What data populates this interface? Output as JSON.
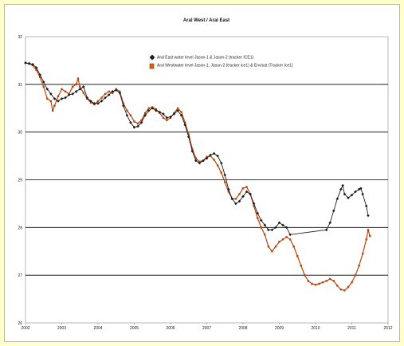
{
  "colors": {
    "page_background": "#ffffc9",
    "plot_background": "#ffffff",
    "east_series": "#1e1e1e",
    "west_series": "#b8440c",
    "gridline": "#000000"
  },
  "chart_data": {
    "type": "line",
    "title": "Aral West / Aral East",
    "xlabel": "",
    "ylabel": "",
    "xlim": [
      2002,
      2012
    ],
    "ylim": [
      26,
      32
    ],
    "x_ticks": [
      "2002",
      "2003",
      "2004",
      "2005",
      "2006",
      "2007",
      "2008",
      "2009",
      "2010",
      "2011",
      "2012"
    ],
    "y_ticks": [
      "26",
      "27",
      "28",
      "29",
      "30",
      "31",
      "32"
    ],
    "grid": "horizontal",
    "legend_position": "top-center",
    "series": [
      {
        "name": "Aral East water level Jason-1 & Jason-2 (tracker ICE1)",
        "color": "#1e1e1e",
        "marker": "diamond",
        "points": [
          [
            2002.0,
            31.45
          ],
          [
            2002.1,
            31.44
          ],
          [
            2002.2,
            31.42
          ],
          [
            2002.3,
            31.35
          ],
          [
            2002.4,
            31.2
          ],
          [
            2002.5,
            31.05
          ],
          [
            2002.6,
            30.9
          ],
          [
            2002.7,
            30.8
          ],
          [
            2002.8,
            30.7
          ],
          [
            2002.9,
            30.65
          ],
          [
            2003.0,
            30.7
          ],
          [
            2003.1,
            30.72
          ],
          [
            2003.2,
            30.78
          ],
          [
            2003.3,
            30.8
          ],
          [
            2003.4,
            30.85
          ],
          [
            2003.5,
            30.9
          ],
          [
            2003.6,
            30.95
          ],
          [
            2003.7,
            30.72
          ],
          [
            2003.8,
            30.65
          ],
          [
            2003.9,
            30.6
          ],
          [
            2004.0,
            30.6
          ],
          [
            2004.1,
            30.65
          ],
          [
            2004.2,
            30.72
          ],
          [
            2004.3,
            30.78
          ],
          [
            2004.4,
            30.85
          ],
          [
            2004.5,
            30.88
          ],
          [
            2004.6,
            30.82
          ],
          [
            2004.7,
            30.55
          ],
          [
            2004.8,
            30.35
          ],
          [
            2004.9,
            30.2
          ],
          [
            2005.0,
            30.1
          ],
          [
            2005.1,
            30.12
          ],
          [
            2005.2,
            30.2
          ],
          [
            2005.3,
            30.35
          ],
          [
            2005.4,
            30.45
          ],
          [
            2005.5,
            30.5
          ],
          [
            2005.6,
            30.45
          ],
          [
            2005.7,
            30.42
          ],
          [
            2005.8,
            30.38
          ],
          [
            2005.9,
            30.3
          ],
          [
            2006.0,
            30.32
          ],
          [
            2006.1,
            30.38
          ],
          [
            2006.2,
            30.45
          ],
          [
            2006.3,
            30.35
          ],
          [
            2006.4,
            30.15
          ],
          [
            2006.5,
            29.9
          ],
          [
            2006.6,
            29.6
          ],
          [
            2006.7,
            29.4
          ],
          [
            2006.8,
            29.35
          ],
          [
            2006.9,
            29.4
          ],
          [
            2007.0,
            29.45
          ],
          [
            2007.1,
            29.52
          ],
          [
            2007.2,
            29.55
          ],
          [
            2007.3,
            29.5
          ],
          [
            2007.4,
            29.35
          ],
          [
            2007.5,
            29.1
          ],
          [
            2007.6,
            28.8
          ],
          [
            2007.7,
            28.6
          ],
          [
            2007.8,
            28.5
          ],
          [
            2007.9,
            28.55
          ],
          [
            2008.0,
            28.65
          ],
          [
            2008.1,
            28.75
          ],
          [
            2008.2,
            28.7
          ],
          [
            2008.3,
            28.5
          ],
          [
            2008.4,
            28.3
          ],
          [
            2008.5,
            28.15
          ],
          [
            2008.6,
            28.05
          ],
          [
            2008.7,
            27.95
          ],
          [
            2008.8,
            27.95
          ],
          [
            2008.9,
            28.0
          ],
          [
            2009.0,
            28.1
          ],
          [
            2009.1,
            28.05
          ],
          [
            2009.2,
            28.0
          ],
          [
            2009.3,
            27.85
          ],
          [
            2010.3,
            27.95
          ],
          [
            2010.4,
            28.1
          ],
          [
            2010.5,
            28.35
          ],
          [
            2010.6,
            28.6
          ],
          [
            2010.7,
            28.8
          ],
          [
            2010.75,
            28.88
          ],
          [
            2010.8,
            28.7
          ],
          [
            2010.9,
            28.62
          ],
          [
            2011.0,
            28.68
          ],
          [
            2011.1,
            28.75
          ],
          [
            2011.2,
            28.8
          ],
          [
            2011.25,
            28.82
          ],
          [
            2011.3,
            28.7
          ],
          [
            2011.4,
            28.45
          ],
          [
            2011.45,
            28.25
          ]
        ]
      },
      {
        "name": "Aral Westwater level Jason-1, Jason-2 (tracker ice1) & Envisat (Tracker Ice1)",
        "color": "#b8440c",
        "marker": "square",
        "points": [
          [
            2002.0,
            31.45
          ],
          [
            2002.1,
            31.43
          ],
          [
            2002.2,
            31.4
          ],
          [
            2002.3,
            31.3
          ],
          [
            2002.4,
            31.15
          ],
          [
            2002.5,
            30.95
          ],
          [
            2002.6,
            30.7
          ],
          [
            2002.7,
            30.65
          ],
          [
            2002.75,
            30.45
          ],
          [
            2002.8,
            30.55
          ],
          [
            2002.9,
            30.75
          ],
          [
            2003.0,
            30.9
          ],
          [
            2003.1,
            30.85
          ],
          [
            2003.2,
            30.8
          ],
          [
            2003.3,
            30.95
          ],
          [
            2003.4,
            31.0
          ],
          [
            2003.45,
            31.12
          ],
          [
            2003.5,
            30.95
          ],
          [
            2003.6,
            30.82
          ],
          [
            2003.7,
            30.7
          ],
          [
            2003.8,
            30.62
          ],
          [
            2003.9,
            30.58
          ],
          [
            2004.0,
            30.65
          ],
          [
            2004.1,
            30.72
          ],
          [
            2004.2,
            30.8
          ],
          [
            2004.3,
            30.85
          ],
          [
            2004.4,
            30.82
          ],
          [
            2004.5,
            30.9
          ],
          [
            2004.6,
            30.85
          ],
          [
            2004.7,
            30.6
          ],
          [
            2004.8,
            30.45
          ],
          [
            2004.9,
            30.35
          ],
          [
            2005.0,
            30.22
          ],
          [
            2005.1,
            30.18
          ],
          [
            2005.2,
            30.25
          ],
          [
            2005.3,
            30.4
          ],
          [
            2005.4,
            30.5
          ],
          [
            2005.5,
            30.52
          ],
          [
            2005.6,
            30.48
          ],
          [
            2005.7,
            30.4
          ],
          [
            2005.8,
            30.3
          ],
          [
            2005.9,
            30.25
          ],
          [
            2006.0,
            30.3
          ],
          [
            2006.1,
            30.4
          ],
          [
            2006.2,
            30.5
          ],
          [
            2006.3,
            30.42
          ],
          [
            2006.4,
            30.2
          ],
          [
            2006.5,
            29.95
          ],
          [
            2006.6,
            29.65
          ],
          [
            2006.7,
            29.45
          ],
          [
            2006.8,
            29.38
          ],
          [
            2006.9,
            29.4
          ],
          [
            2007.0,
            29.48
          ],
          [
            2007.1,
            29.5
          ],
          [
            2007.2,
            29.42
          ],
          [
            2007.3,
            29.3
          ],
          [
            2007.4,
            29.15
          ],
          [
            2007.5,
            28.95
          ],
          [
            2007.6,
            28.75
          ],
          [
            2007.7,
            28.6
          ],
          [
            2007.8,
            28.6
          ],
          [
            2007.9,
            28.7
          ],
          [
            2008.0,
            28.82
          ],
          [
            2008.1,
            28.85
          ],
          [
            2008.2,
            28.7
          ],
          [
            2008.3,
            28.45
          ],
          [
            2008.4,
            28.2
          ],
          [
            2008.5,
            28.0
          ],
          [
            2008.6,
            27.85
          ],
          [
            2008.7,
            27.6
          ],
          [
            2008.8,
            27.5
          ],
          [
            2008.9,
            27.6
          ],
          [
            2009.0,
            27.7
          ],
          [
            2009.1,
            27.75
          ],
          [
            2009.2,
            27.8
          ],
          [
            2009.3,
            27.75
          ],
          [
            2009.4,
            27.6
          ],
          [
            2009.5,
            27.4
          ],
          [
            2009.6,
            27.2
          ],
          [
            2009.7,
            27.0
          ],
          [
            2009.8,
            26.88
          ],
          [
            2009.9,
            26.82
          ],
          [
            2010.0,
            26.8
          ],
          [
            2010.1,
            26.82
          ],
          [
            2010.2,
            26.85
          ],
          [
            2010.3,
            26.88
          ],
          [
            2010.4,
            26.92
          ],
          [
            2010.5,
            26.88
          ],
          [
            2010.6,
            26.78
          ],
          [
            2010.7,
            26.7
          ],
          [
            2010.8,
            26.68
          ],
          [
            2010.9,
            26.75
          ],
          [
            2011.0,
            26.85
          ],
          [
            2011.1,
            27.0
          ],
          [
            2011.2,
            27.2
          ],
          [
            2011.3,
            27.45
          ],
          [
            2011.4,
            27.75
          ],
          [
            2011.45,
            27.95
          ],
          [
            2011.5,
            27.82
          ]
        ]
      }
    ]
  }
}
